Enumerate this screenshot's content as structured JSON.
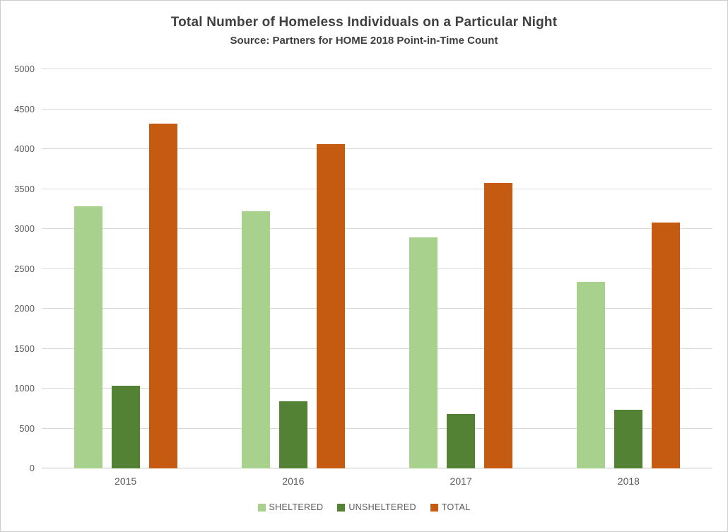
{
  "chart_data": {
    "type": "bar",
    "title": "Total Number of Homeless Individuals on a Particular Night",
    "subtitle": "Source: Partners for HOME 2018 Point-in-Time Count",
    "categories": [
      "2015",
      "2016",
      "2017",
      "2018"
    ],
    "series": [
      {
        "name": "SHELTERED",
        "color": "#A9D18E",
        "values": [
          3285,
          3222,
          2890,
          2337
        ]
      },
      {
        "name": "UNSHELTERED",
        "color": "#548235",
        "values": [
          1032,
          841,
          682,
          739
        ]
      },
      {
        "name": "TOTAL",
        "color": "#C55A11",
        "values": [
          4317,
          4063,
          3572,
          3076
        ]
      }
    ],
    "ylim": [
      0,
      5000
    ],
    "ytick_interval": 500,
    "xlabel": "",
    "ylabel": "",
    "grid": true,
    "legend_position": "bottom"
  },
  "styles": {
    "title_color": "#404040",
    "axis_label_color": "#595959",
    "gridline_color": "#D9D9D9",
    "background": "#FFFFFF",
    "border_color": "#CCCCCC"
  }
}
